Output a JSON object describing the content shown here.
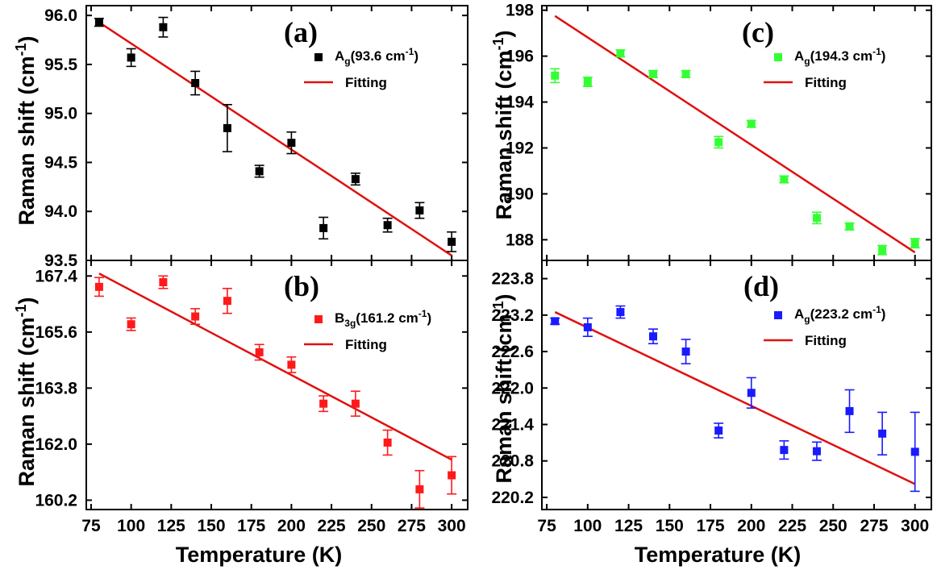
{
  "figure": {
    "x_title": "Temperature (K)",
    "y_title_main": "Raman shift ",
    "y_title_unit": "(cm",
    "y_title_sup": "-1",
    "y_title_close": ")"
  },
  "chart_data": [
    {
      "type": "scatter",
      "panel": "(a)",
      "x": [
        80,
        100,
        120,
        140,
        160,
        180,
        200,
        220,
        240,
        260,
        280,
        300
      ],
      "y": [
        95.93,
        95.57,
        95.88,
        95.31,
        94.85,
        94.41,
        94.7,
        93.83,
        94.33,
        93.86,
        94.01,
        93.69
      ],
      "err": [
        0.04,
        0.09,
        0.1,
        0.12,
        0.24,
        0.06,
        0.11,
        0.11,
        0.06,
        0.07,
        0.08,
        0.1
      ],
      "fit": [
        [
          80,
          95.93
        ],
        [
          300,
          93.55
        ]
      ],
      "ylim": [
        93.5,
        96.1
      ],
      "yticks": [
        "93.5",
        "94.0",
        "94.5",
        "95.0",
        "95.5",
        "96.0"
      ],
      "xlim": [
        72,
        310
      ],
      "xticks": [],
      "color": "#000000",
      "legend": {
        "main": "A",
        "sub": "g",
        "rest": "(93.6 cm",
        "sup": "-1",
        "close": ")",
        "fit_label": "Fitting"
      }
    },
    {
      "type": "scatter",
      "panel": "(b)",
      "x": [
        80,
        100,
        120,
        140,
        160,
        180,
        200,
        220,
        240,
        260,
        280,
        300
      ],
      "y": [
        167.05,
        165.85,
        167.2,
        166.1,
        166.6,
        164.95,
        164.55,
        163.3,
        163.3,
        162.05,
        160.55,
        161.0
      ],
      "err": [
        0.3,
        0.2,
        0.2,
        0.25,
        0.4,
        0.25,
        0.25,
        0.25,
        0.4,
        0.4,
        0.6,
        0.6
      ],
      "fit": [
        [
          80,
          167.48
        ],
        [
          300,
          161.5
        ]
      ],
      "ylim": [
        159.9,
        167.9
      ],
      "yticks": [
        "160.2",
        "162.0",
        "163.8",
        "165.6",
        "167.4"
      ],
      "xlim": [
        72,
        310
      ],
      "xticks": [
        "75",
        "100",
        "125",
        "150",
        "175",
        "200",
        "225",
        "250",
        "275",
        "300"
      ],
      "color": "#ff1a1a",
      "legend": {
        "main": "B",
        "sub": "3g",
        "rest": "(161.2 cm",
        "sup": "-1",
        "close": ")",
        "fit_label": "Fitting"
      }
    },
    {
      "type": "scatter",
      "panel": "(c)",
      "x": [
        80,
        100,
        120,
        140,
        160,
        180,
        200,
        220,
        240,
        260,
        280,
        300
      ],
      "y": [
        195.15,
        194.88,
        196.12,
        195.22,
        195.22,
        192.25,
        193.05,
        190.63,
        188.95,
        188.58,
        187.55,
        187.85
      ],
      "err": [
        0.3,
        0.2,
        0.15,
        0.15,
        0.15,
        0.25,
        0.15,
        0.15,
        0.25,
        0.15,
        0.2,
        0.2
      ],
      "fit": [
        [
          80,
          197.75
        ],
        [
          300,
          187.45
        ]
      ],
      "ylim": [
        187.1,
        198.2
      ],
      "yticks": [
        "188",
        "190",
        "192",
        "194",
        "196",
        "198"
      ],
      "xlim": [
        72,
        310
      ],
      "xticks": [],
      "color": "#33ff33",
      "legend": {
        "main": "A",
        "sub": "g",
        "rest": "(194.3 cm",
        "sup": "-1",
        "close": ")",
        "fit_label": "Fitting"
      }
    },
    {
      "type": "scatter",
      "panel": "(d)",
      "x": [
        80,
        100,
        120,
        140,
        160,
        180,
        200,
        220,
        240,
        260,
        280,
        300
      ],
      "y": [
        223.1,
        223.0,
        223.25,
        222.85,
        222.6,
        221.3,
        221.92,
        220.98,
        220.96,
        221.62,
        221.25,
        220.95
      ],
      "err": [
        0.05,
        0.15,
        0.1,
        0.12,
        0.2,
        0.12,
        0.25,
        0.15,
        0.15,
        0.35,
        0.35,
        0.65
      ],
      "fit": [
        [
          80,
          223.25
        ],
        [
          300,
          220.42
        ]
      ],
      "ylim": [
        220.0,
        224.1
      ],
      "yticks": [
        "220.2",
        "220.8",
        "221.4",
        "222.0",
        "222.6",
        "223.2",
        "223.8"
      ],
      "xlim": [
        72,
        310
      ],
      "xticks": [
        "75",
        "100",
        "125",
        "150",
        "175",
        "200",
        "225",
        "250",
        "275",
        "300"
      ],
      "color": "#1a1aff",
      "legend": {
        "main": "A",
        "sub": "g",
        "rest": "(223.2 cm",
        "sup": "-1",
        "close": ")",
        "fit_label": "Fitting"
      }
    }
  ]
}
